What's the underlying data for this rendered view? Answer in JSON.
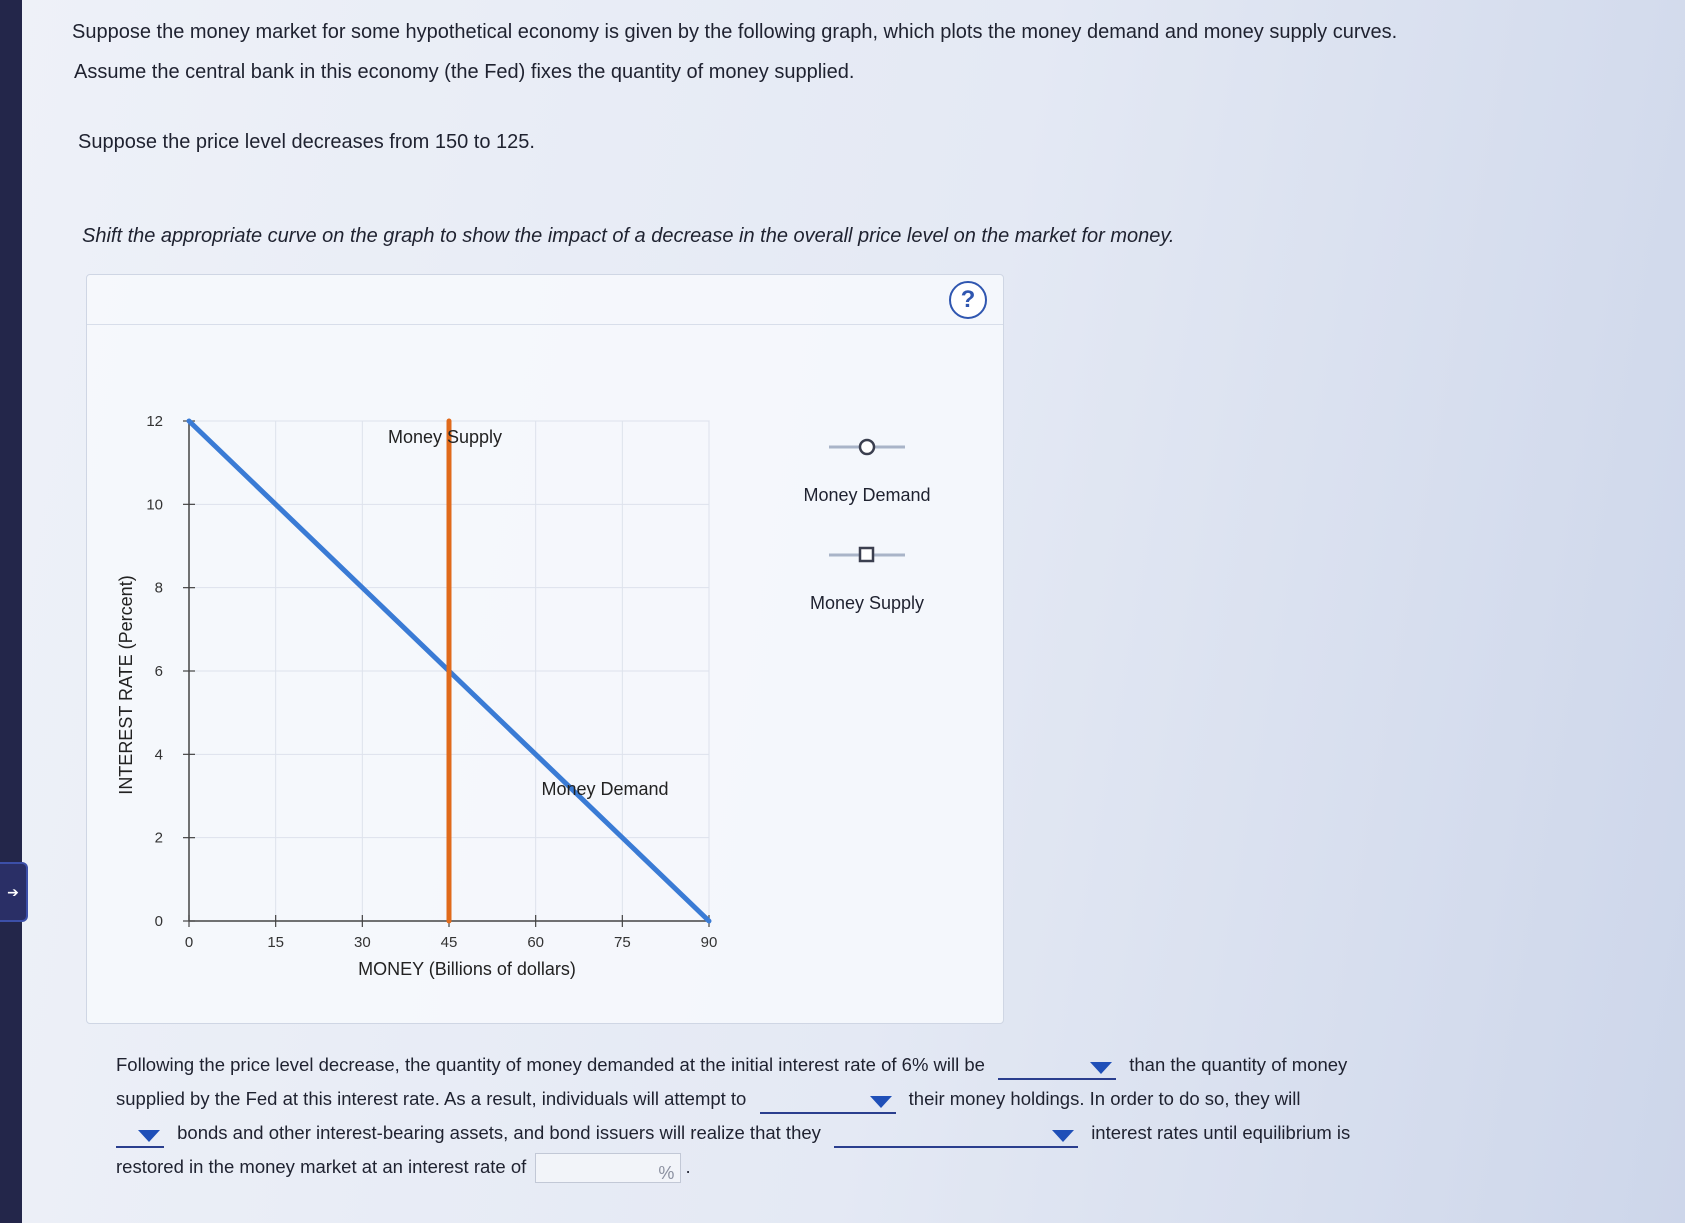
{
  "question": {
    "line1": "Suppose the money market for some hypothetical economy is given by the following graph, which plots the money demand and money supply curves.",
    "line2": "Assume the central bank in this economy (the Fed) fixes the quantity of money supplied.",
    "price_change": "Suppose the price level decreases from 150 to 125.",
    "instruction": "Shift the appropriate curve on the graph to show the impact of a decrease in the overall price level on the market for money."
  },
  "help_label": "?",
  "legend": {
    "demand_label": "Money Demand",
    "supply_label": "Money Supply"
  },
  "chart_data": {
    "type": "line",
    "xlabel": "MONEY (Billions of dollars)",
    "ylabel": "INTEREST RATE (Percent)",
    "xlim": [
      0,
      90
    ],
    "ylim": [
      0,
      12
    ],
    "x_ticks": [
      0,
      15,
      30,
      45,
      60,
      75,
      90
    ],
    "y_ticks": [
      0,
      2,
      4,
      6,
      8,
      10,
      12
    ],
    "grid": true,
    "series": [
      {
        "name": "Money Demand",
        "color": "#3a7bd5",
        "points": [
          [
            0,
            12
          ],
          [
            90,
            0
          ]
        ]
      },
      {
        "name": "Money Supply",
        "color": "#e06a1b",
        "points": [
          [
            45,
            0
          ],
          [
            45,
            12
          ]
        ]
      }
    ]
  },
  "answer": {
    "text1": "Following the price level decrease, the quantity of money demanded at the initial interest rate of 6% will be",
    "text2": "than the quantity of money",
    "text3": "supplied by the Fed at this interest rate. As a result, individuals will attempt to",
    "text4": "their money holdings. In order to do so, they will",
    "text5": "bonds and other interest-bearing assets, and bond issuers will realize that they",
    "text6": "interest rates until equilibrium is",
    "text7": "restored in the money market at an interest rate of",
    "pct_symbol": "%",
    "period": "."
  }
}
